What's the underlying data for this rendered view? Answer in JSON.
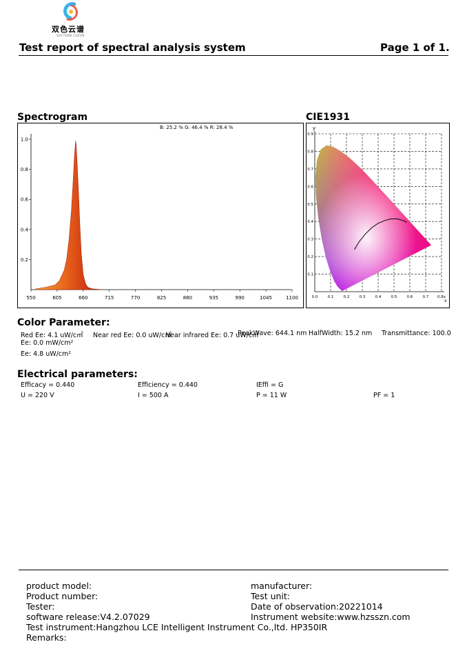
{
  "logo": {
    "name": "双色云谱",
    "sub": "SUCTORE CLOUD"
  },
  "header": {
    "title": "Test report of spectral analysis system",
    "page": "Page 1 of 1."
  },
  "spectrogram": {
    "title": "Spectrogram",
    "rgb_label": "B: 25.2 %  G: 46.4 %  R: 28.4 %"
  },
  "cie": {
    "title": "CIE1931",
    "ylabel": "y",
    "xlabel": "x"
  },
  "chart_data": [
    {
      "type": "area",
      "title": "",
      "xlabel": "",
      "ylabel": "",
      "xlim": [
        550,
        1100
      ],
      "ylim": [
        0,
        1.0
      ],
      "x_ticks": [
        "550",
        "605",
        "660",
        "715",
        "770",
        "825",
        "880",
        "935",
        "990",
        "1045",
        "1100"
      ],
      "y_ticks": [
        "0.2",
        "0.4",
        "0.6",
        "0.8",
        "1.0"
      ],
      "annotation": "B: 25.2 %  G: 46.4 %  R: 28.4 %",
      "x": [
        560,
        580,
        600,
        610,
        620,
        625,
        630,
        635,
        638,
        641,
        643,
        644,
        645,
        647,
        650,
        653,
        656,
        660,
        665,
        670,
        680,
        700
      ],
      "values": [
        0.005,
        0.015,
        0.03,
        0.06,
        0.13,
        0.2,
        0.33,
        0.52,
        0.68,
        0.86,
        0.95,
        0.99,
        0.97,
        0.86,
        0.66,
        0.43,
        0.24,
        0.1,
        0.04,
        0.015,
        0.005,
        0.0
      ]
    },
    {
      "type": "scatter",
      "title": "",
      "xlabel": "x",
      "ylabel": "y",
      "xlim": [
        0,
        0.8
      ],
      "ylim": [
        0,
        0.9
      ],
      "x_ticks": [
        "0.0",
        "0.1",
        "0.2",
        "0.3",
        "0.4",
        "0.5",
        "0.6",
        "0.7",
        "0.8x"
      ],
      "y_ticks": [
        "0.1",
        "0.2",
        "0.3",
        "0.4",
        "0.5",
        "0.6",
        "0.7",
        "0.8",
        "0.9"
      ],
      "planckian_locus": {
        "x": [
          0.25,
          0.28,
          0.32,
          0.36,
          0.4,
          0.44,
          0.48,
          0.52,
          0.56,
          0.58
        ],
        "y": [
          0.24,
          0.285,
          0.33,
          0.365,
          0.39,
          0.405,
          0.415,
          0.415,
          0.405,
          0.395
        ]
      }
    }
  ],
  "color_params": {
    "title": "Color Parameter:",
    "red_ee": "Red Ee: 4.1 uW/c㎡",
    "near_red_ee": "Near red Ee: 0.0 uW/c㎡",
    "near_ir_ee": "Near infrared Ee: 0.7 uW/c㎡",
    "peak_wave": "PeakWave: 644.1 nm",
    "half_width": "HalfWidth: 15.2 nm",
    "transmittance": "Transmittance: 100.0",
    "ee1": "Ee: 0.0 mW/cm²",
    "ee2": "Ee: 4.8 uW/cm²"
  },
  "electrical": {
    "title": "Electrical parameters:",
    "efficacy": "Efficacy = 0.440",
    "efficiency": "Efficiency = 0.440",
    "ieffi": "IEffi = G",
    "u": "U = 220 V",
    "i": "I = 500 A",
    "p": "P = 11 W",
    "pf": "PF = 1"
  },
  "footer": {
    "product_model": "product model:",
    "manufacturer": "manufacturer:",
    "product_number": "Product number:",
    "test_unit": "Test unit:",
    "tester": "Tester:",
    "date": "Date of observation:20221014",
    "software": "software release:V4.2.07029",
    "website": "Instrument website:www.hzsszn.com",
    "instrument": "Test instrument:Hangzhou LCE Intelligent Instrument Co.,ltd. HP350IR",
    "remarks": "Remarks:"
  }
}
